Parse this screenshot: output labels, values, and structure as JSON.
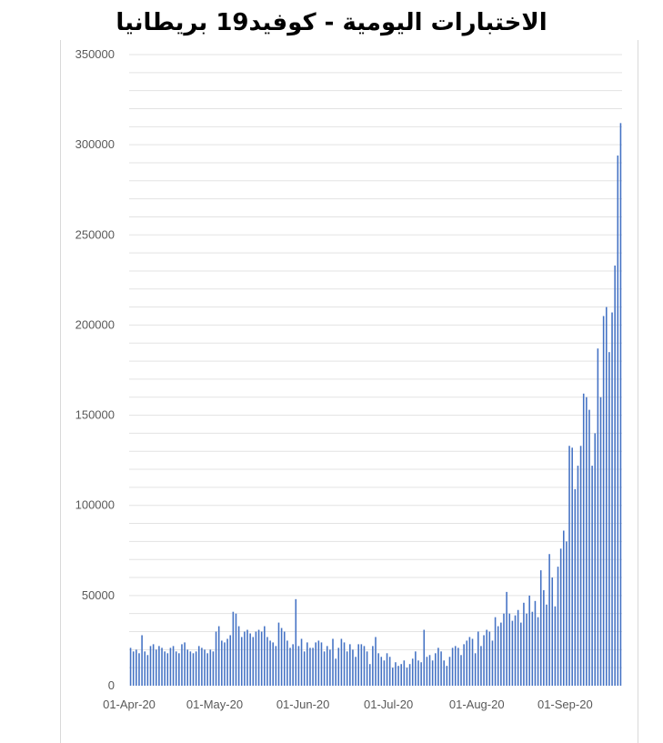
{
  "chart_data": {
    "type": "bar",
    "title": "الاختبارات اليومية - كوفيد19 بريطانيا",
    "xlabel": "",
    "ylabel": "",
    "ylim": [
      0,
      350000
    ],
    "y_ticks": [
      "0",
      "50000",
      "100000",
      "150000",
      "200000",
      "250000",
      "300000",
      "350000"
    ],
    "x_ticks": [
      "01-Apr-20",
      "01-May-20",
      "01-Jun-20",
      "01-Jul-20",
      "01-Aug-20",
      "01-Sep-20"
    ],
    "grid": true,
    "bar_color": "#4472c4",
    "start_date": "2020-04-01",
    "values": [
      21000,
      19000,
      20000,
      18000,
      28000,
      19000,
      17000,
      22000,
      23000,
      20000,
      22000,
      21000,
      19000,
      18000,
      21000,
      22000,
      19000,
      18000,
      23000,
      24000,
      20000,
      19000,
      18000,
      19000,
      22000,
      21000,
      20000,
      18000,
      20000,
      19000,
      30000,
      33000,
      25000,
      24000,
      26000,
      28000,
      41000,
      40000,
      33000,
      27000,
      30000,
      31000,
      29000,
      27000,
      30000,
      31000,
      30000,
      33000,
      27000,
      25000,
      24000,
      22000,
      35000,
      32000,
      30000,
      25000,
      21000,
      23000,
      48000,
      22000,
      26000,
      19000,
      24000,
      21000,
      21000,
      24000,
      25000,
      24000,
      19000,
      22000,
      20000,
      26000,
      15000,
      21000,
      26000,
      24000,
      19000,
      23000,
      20000,
      16000,
      23000,
      23000,
      22000,
      19000,
      12000,
      22000,
      27000,
      18000,
      16000,
      14000,
      18000,
      16000,
      10000,
      13000,
      11000,
      12000,
      14000,
      10000,
      12000,
      15000,
      19000,
      14000,
      13000,
      31000,
      16000,
      17000,
      14000,
      18000,
      21000,
      19000,
      14000,
      11000,
      16000,
      21000,
      22000,
      21000,
      17000,
      23000,
      25000,
      27000,
      26000,
      18000,
      30000,
      22000,
      28000,
      31000,
      30000,
      25000,
      38000,
      33000,
      35000,
      40000,
      52000,
      40000,
      36000,
      39000,
      42000,
      35000,
      46000,
      40000,
      50000,
      41000,
      47000,
      38000,
      64000,
      53000,
      45000,
      73000,
      60000,
      44000,
      66000,
      76000,
      86000,
      80000,
      133000,
      132000,
      109000,
      122000,
      133000,
      162000,
      160000,
      153000,
      122000,
      140000,
      187000,
      160000,
      205000,
      210000,
      185000,
      207000,
      233000,
      294000,
      312000
    ]
  }
}
